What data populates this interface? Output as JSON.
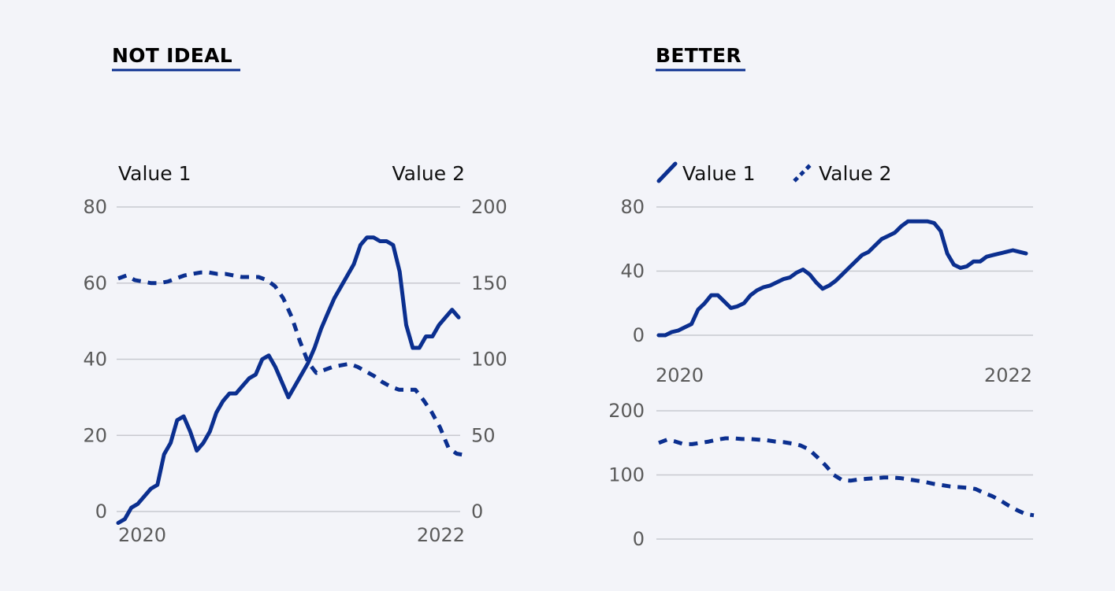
{
  "panels": {
    "left": {
      "heading": "NOT IDEAL"
    },
    "right": {
      "heading": "BETTER"
    }
  },
  "colors": {
    "line": "#0b2f8f",
    "grid": "#c8c9d0",
    "background": "#f3f4f9"
  },
  "chart_data": [
    {
      "type": "line",
      "title": "NOT IDEAL",
      "dual_axis": true,
      "x_ticks": [
        "2020",
        "2022"
      ],
      "y_left": {
        "label": "Value 1",
        "ylim": [
          0,
          80
        ],
        "ticks": [
          0,
          20,
          40,
          60,
          80
        ]
      },
      "y_right": {
        "label": "Value 2",
        "ylim": [
          0,
          200
        ],
        "ticks": [
          0,
          50,
          100,
          150,
          200
        ]
      },
      "grid": true,
      "series": [
        {
          "name": "Value 1",
          "axis": "left",
          "style": "solid",
          "values": [
            -3,
            -2,
            1,
            2,
            4,
            6,
            7,
            15,
            18,
            24,
            25,
            21,
            16,
            18,
            21,
            26,
            29,
            31,
            31,
            33,
            35,
            36,
            40,
            41,
            38,
            34,
            30,
            33,
            36,
            39,
            43,
            48,
            52,
            56,
            59,
            62,
            65,
            70,
            72,
            72,
            71,
            71,
            70,
            63,
            49,
            43,
            43,
            46,
            46,
            49,
            51,
            53,
            51
          ]
        },
        {
          "name": "Value 2",
          "axis": "right",
          "style": "dashed",
          "values": [
            153,
            155,
            152,
            151,
            150,
            150,
            151,
            153,
            155,
            156,
            157,
            157,
            156,
            156,
            155,
            154,
            154,
            154,
            152,
            148,
            140,
            128,
            112,
            98,
            91,
            93,
            95,
            96,
            97,
            95,
            92,
            89,
            85,
            82,
            80,
            80,
            80,
            73,
            65,
            55,
            42,
            38,
            37
          ]
        }
      ]
    },
    {
      "type": "line",
      "title": "BETTER",
      "legend": {
        "placement": "top-left",
        "entries": [
          "Value 1",
          "Value 2"
        ]
      },
      "grid": true,
      "panels": [
        {
          "x_ticks": [
            "2020",
            "2022"
          ],
          "ylim": [
            0,
            80
          ],
          "ticks": [
            0,
            40,
            80
          ],
          "series": {
            "name": "Value 1",
            "style": "solid",
            "values": [
              0,
              0,
              2,
              3,
              5,
              7,
              16,
              20,
              25,
              25,
              21,
              17,
              18,
              20,
              25,
              28,
              30,
              31,
              33,
              35,
              36,
              39,
              41,
              38,
              33,
              29,
              31,
              34,
              38,
              42,
              46,
              50,
              52,
              56,
              60,
              62,
              64,
              68,
              71,
              71,
              71,
              71,
              70,
              65,
              51,
              44,
              42,
              43,
              46,
              46,
              49,
              50,
              51,
              52,
              53,
              52,
              51
            ]
          }
        },
        {
          "ylim": [
            0,
            200
          ],
          "ticks": [
            0,
            100,
            200
          ],
          "series": {
            "name": "Value 2",
            "style": "dashed",
            "values": [
              150,
              155,
              152,
              148,
              148,
              150,
              152,
              155,
              157,
              157,
              156,
              156,
              155,
              154,
              152,
              151,
              149,
              146,
              140,
              128,
              115,
              100,
              92,
              91,
              93,
              94,
              95,
              96,
              96,
              95,
              93,
              91,
              89,
              86,
              84,
              82,
              81,
              80,
              78,
              72,
              67,
              60,
              52,
              45,
              39,
              37
            ]
          }
        }
      ]
    }
  ]
}
